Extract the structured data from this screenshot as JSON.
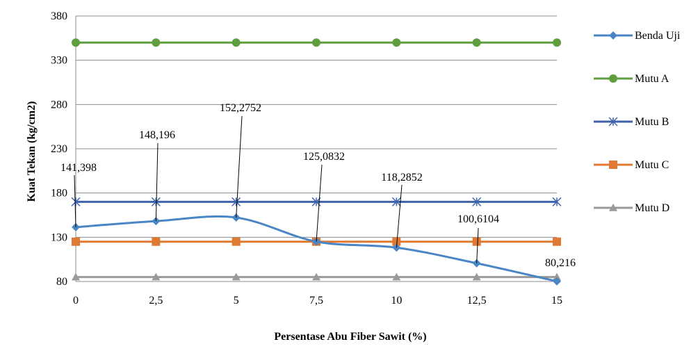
{
  "chart_data": {
    "type": "line",
    "x": [
      "0",
      "2,5",
      "5",
      "7,5",
      "10",
      "12,5",
      "15"
    ],
    "xlabel": "Persentase Abu Fiber Sawit (%)",
    "ylabel": "Kuat Tekan (kg/cm2)",
    "ylim": [
      80,
      380
    ],
    "yticks": [
      "80",
      "130",
      "180",
      "230",
      "280",
      "330",
      "380"
    ],
    "grid": "horizontal",
    "legend_position": "right",
    "series": [
      {
        "name": "Benda Uji",
        "color": "#4a86c5",
        "marker": "diamond",
        "smooth": true,
        "values": [
          141.398,
          148.196,
          152.2752,
          125.0832,
          118.2852,
          100.6104,
          80.216
        ],
        "labels": [
          "141,398",
          "148,196",
          "152,2752",
          "125,0832",
          "118,2852",
          "100,6104",
          "80,216"
        ]
      },
      {
        "name": "Mutu A",
        "color": "#5e9e3f",
        "marker": "circle",
        "values": [
          350,
          350,
          350,
          350,
          350,
          350,
          350
        ]
      },
      {
        "name": "Mutu B",
        "color": "#3f62ad",
        "marker": "asterisk",
        "values": [
          170,
          170,
          170,
          170,
          170,
          170,
          170
        ]
      },
      {
        "name": "Mutu C",
        "color": "#e07a33",
        "marker": "square",
        "values": [
          125,
          125,
          125,
          125,
          125,
          125,
          125
        ]
      },
      {
        "name": "Mutu D",
        "color": "#9a9a9a",
        "marker": "triangle",
        "values": [
          85,
          85,
          85,
          85,
          85,
          85,
          85
        ]
      }
    ]
  }
}
